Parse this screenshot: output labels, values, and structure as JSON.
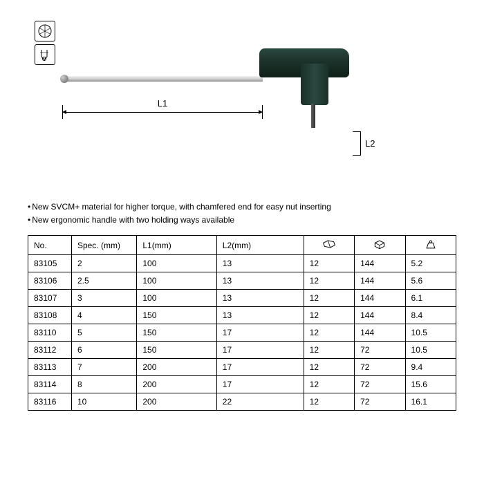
{
  "diagram": {
    "l1_label": "L1",
    "l2_label": "L2"
  },
  "bullets": [
    "New SVCM+ material for higher torque, with chamfered end for easy nut inserting",
    "New ergonomic handle with two holding ways available"
  ],
  "table": {
    "columns": [
      "No.",
      "Spec. (mm)",
      "L1(mm)",
      "L2(mm)"
    ],
    "icon_columns": [
      "pack-icon",
      "box-icon",
      "weight-icon"
    ],
    "rows": [
      [
        "83105",
        "2",
        "100",
        "13",
        "12",
        "144",
        "5.2"
      ],
      [
        "83106",
        "2.5",
        "100",
        "13",
        "12",
        "144",
        "5.6"
      ],
      [
        "83107",
        "3",
        "100",
        "13",
        "12",
        "144",
        "6.1"
      ],
      [
        "83108",
        "4",
        "150",
        "13",
        "12",
        "144",
        "8.4"
      ],
      [
        "83110",
        "5",
        "150",
        "17",
        "12",
        "144",
        "10.5"
      ],
      [
        "83112",
        "6",
        "150",
        "17",
        "12",
        "72",
        "10.5"
      ],
      [
        "83113",
        "7",
        "200",
        "17",
        "12",
        "72",
        "9.4"
      ],
      [
        "83114",
        "8",
        "200",
        "17",
        "12",
        "72",
        "15.6"
      ],
      [
        "83116",
        "10",
        "200",
        "22",
        "12",
        "72",
        "16.1"
      ]
    ],
    "column_widths": [
      "60px",
      "90px",
      "110px",
      "120px",
      "70px",
      "70px",
      "70px"
    ],
    "border_color": "#000000",
    "font_size": 12
  }
}
